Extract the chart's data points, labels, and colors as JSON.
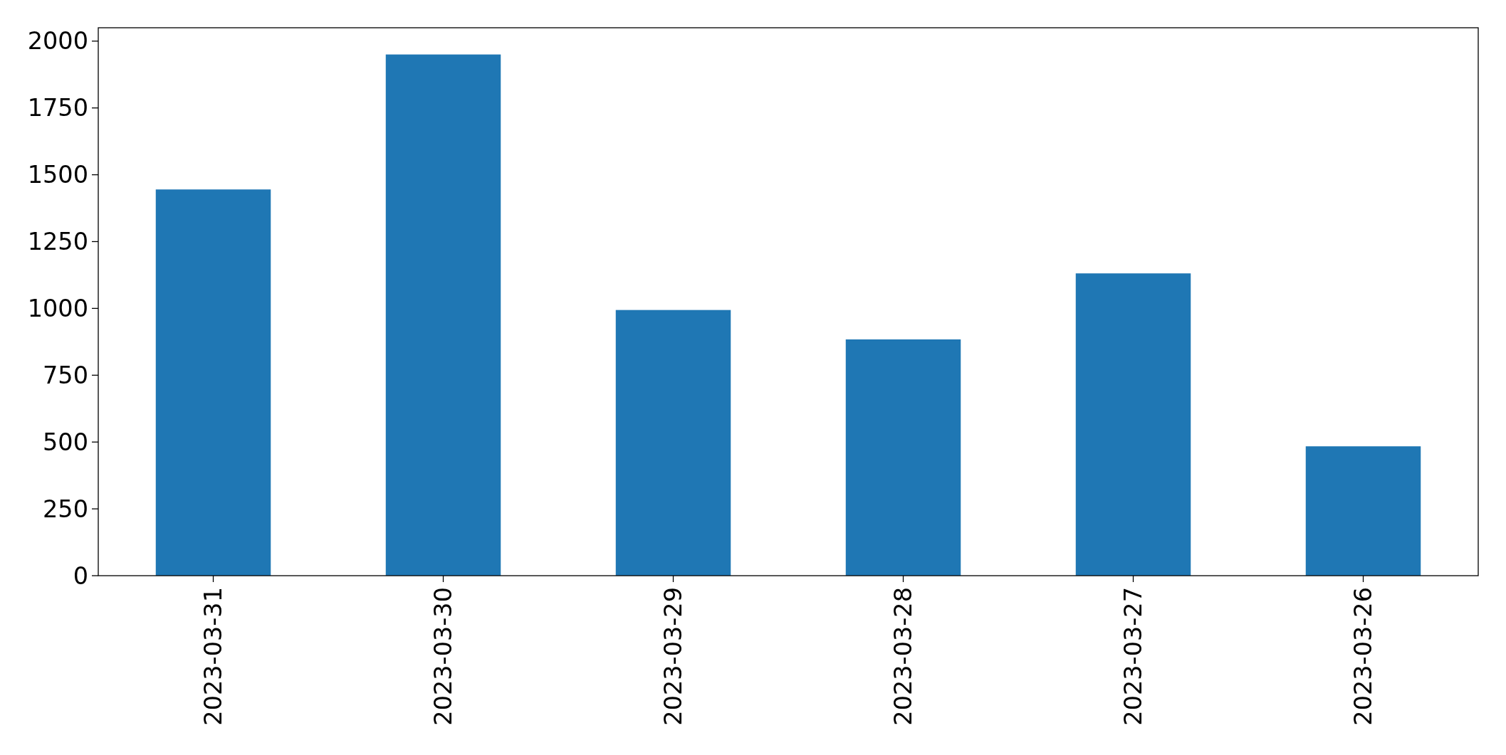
{
  "chart_data": {
    "type": "bar",
    "categories": [
      "2023-03-31",
      "2023-03-30",
      "2023-03-29",
      "2023-03-28",
      "2023-03-27",
      "2023-03-26"
    ],
    "values": [
      1445,
      1950,
      994,
      884,
      1131,
      484
    ],
    "color": "#1f77b4",
    "ylim": [
      0,
      2050
    ],
    "yticks": [
      0,
      250,
      500,
      750,
      1000,
      1250,
      1500,
      1750,
      2000
    ]
  }
}
